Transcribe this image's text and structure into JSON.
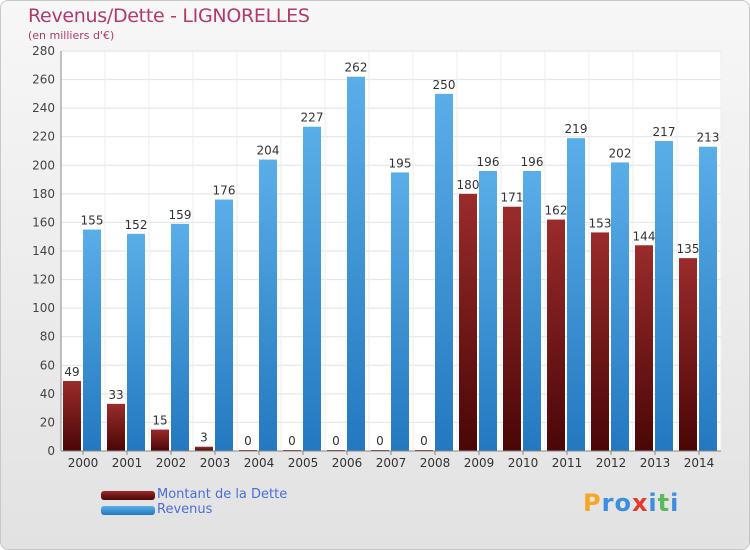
{
  "title": "Revenus/Dette - LIGNORELLES",
  "subtitle": "(en milliers d'€)",
  "logo": {
    "text": "Proxiti",
    "letters": [
      {
        "ch": "P",
        "color": "#f5a623"
      },
      {
        "ch": "r",
        "color": "#3d8ee0"
      },
      {
        "ch": "o",
        "color": "#3d8ee0"
      },
      {
        "ch": "x",
        "color": "#e03c31"
      },
      {
        "ch": "i",
        "color": "#3d8ee0"
      },
      {
        "ch": "t",
        "color": "#5cb85c"
      },
      {
        "ch": "i",
        "color": "#3d8ee0"
      }
    ]
  },
  "legend": [
    {
      "label": "Montant de la Dette",
      "color": "#7a1a1a"
    },
    {
      "label": "Revenus",
      "color": "#3d97dc"
    }
  ],
  "chart_data": {
    "type": "bar",
    "title": "Revenus/Dette - LIGNORELLES",
    "subtitle": "(en milliers d'€)",
    "categories": [
      "2000",
      "2001",
      "2002",
      "2003",
      "2004",
      "2005",
      "2006",
      "2007",
      "2008",
      "2009",
      "2010",
      "2011",
      "2012",
      "2013",
      "2014"
    ],
    "series": [
      {
        "name": "Montant de la Dette",
        "color": "#7a1a1a",
        "values": [
          49,
          33,
          15,
          3,
          0,
          0,
          0,
          0,
          0,
          180,
          171,
          162,
          153,
          144,
          135
        ]
      },
      {
        "name": "Revenus",
        "color": "#3d97dc",
        "values": [
          155,
          152,
          159,
          176,
          204,
          227,
          262,
          195,
          250,
          196,
          196,
          219,
          202,
          217,
          213
        ]
      }
    ],
    "ylim": [
      0,
      280
    ],
    "yticks": [
      0,
      20,
      40,
      60,
      80,
      100,
      120,
      140,
      160,
      180,
      200,
      220,
      240,
      260,
      280
    ],
    "grid": true,
    "legend_position": "bottom-left"
  }
}
